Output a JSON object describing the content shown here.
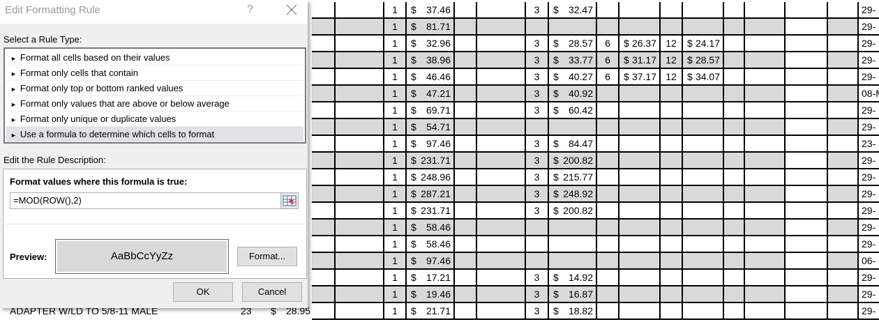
{
  "dialog": {
    "title": "Edit Formatting Rule",
    "help_label": "?",
    "select_rule_type_label": "Select a Rule Type:",
    "rule_types": [
      {
        "label": "Format all cells based on their values",
        "selected": false
      },
      {
        "label": "Format only cells that contain",
        "selected": false
      },
      {
        "label": "Format only top or bottom ranked values",
        "selected": false
      },
      {
        "label": "Format only values that are above or below average",
        "selected": false
      },
      {
        "label": "Format only unique or duplicate values",
        "selected": false
      },
      {
        "label": "Use a formula to determine which cells to format",
        "selected": true
      }
    ],
    "edit_description_label": "Edit the Rule Description:",
    "formula_label": "Format values where this formula is true:",
    "formula_value": "=MOD(ROW(),2)",
    "preview_label": "Preview:",
    "preview_text": "AaBbCcYyZz",
    "format_button": "Format...",
    "ok_button": "OK",
    "cancel_button": "Cancel"
  },
  "sheet": {
    "currency": "$",
    "shade_color": "#d9d9d9",
    "rows": [
      {
        "q1": "1",
        "p1": "37.46",
        "q2": "3",
        "p2": "32.47",
        "q3": "",
        "p3": "",
        "q4": "",
        "p4": "",
        "date": "29-"
      },
      {
        "q1": "1",
        "p1": "81.71",
        "q2": "",
        "p2": "",
        "q3": "",
        "p3": "",
        "q4": "",
        "p4": "",
        "date": "29-"
      },
      {
        "q1": "1",
        "p1": "32.96",
        "q2": "3",
        "p2": "28.57",
        "q3": "6",
        "p3": "26.37",
        "q4": "12",
        "p4": "24.17",
        "date": "29-"
      },
      {
        "q1": "1",
        "p1": "38.96",
        "q2": "3",
        "p2": "33.77",
        "q3": "6",
        "p3": "31.17",
        "q4": "12",
        "p4": "28.57",
        "date": "29-"
      },
      {
        "q1": "1",
        "p1": "46.46",
        "q2": "3",
        "p2": "40.27",
        "q3": "6",
        "p3": "37.17",
        "q4": "12",
        "p4": "34.07",
        "date": "29-"
      },
      {
        "q1": "1",
        "p1": "47.21",
        "q2": "3",
        "p2": "40.92",
        "q3": "",
        "p3": "",
        "q4": "",
        "p4": "",
        "date": "08-M"
      },
      {
        "q1": "1",
        "p1": "69.71",
        "q2": "3",
        "p2": "60.42",
        "q3": "",
        "p3": "",
        "q4": "",
        "p4": "",
        "date": "29-"
      },
      {
        "q1": "1",
        "p1": "54.71",
        "q2": "",
        "p2": "",
        "q3": "",
        "p3": "",
        "q4": "",
        "p4": "",
        "date": "29-"
      },
      {
        "q1": "1",
        "p1": "97.46",
        "q2": "3",
        "p2": "84.47",
        "q3": "",
        "p3": "",
        "q4": "",
        "p4": "",
        "date": "23-"
      },
      {
        "q1": "1",
        "p1": "231.71",
        "q2": "3",
        "p2": "200.82",
        "q3": "",
        "p3": "",
        "q4": "",
        "p4": "",
        "date": "29-"
      },
      {
        "q1": "1",
        "p1": "248.96",
        "q2": "3",
        "p2": "215.77",
        "q3": "",
        "p3": "",
        "q4": "",
        "p4": "",
        "date": "29-"
      },
      {
        "q1": "1",
        "p1": "287.21",
        "q2": "3",
        "p2": "248.92",
        "q3": "",
        "p3": "",
        "q4": "",
        "p4": "",
        "date": "29-"
      },
      {
        "q1": "1",
        "p1": "231.71",
        "q2": "3",
        "p2": "200.82",
        "q3": "",
        "p3": "",
        "q4": "",
        "p4": "",
        "date": "29-"
      },
      {
        "q1": "1",
        "p1": "58.46",
        "q2": "",
        "p2": "",
        "q3": "",
        "p3": "",
        "q4": "",
        "p4": "",
        "date": "29-"
      },
      {
        "q1": "1",
        "p1": "58.46",
        "q2": "",
        "p2": "",
        "q3": "",
        "p3": "",
        "q4": "",
        "p4": "",
        "date": "29-"
      },
      {
        "q1": "1",
        "p1": "97.46",
        "q2": "",
        "p2": "",
        "q3": "",
        "p3": "",
        "q4": "",
        "p4": "",
        "date": "06-"
      },
      {
        "q1": "1",
        "p1": "17.21",
        "q2": "3",
        "p2": "14.92",
        "q3": "",
        "p3": "",
        "q4": "",
        "p4": "",
        "date": "29-"
      },
      {
        "q1": "1",
        "p1": "19.46",
        "q2": "3",
        "p2": "16.87",
        "q3": "",
        "p3": "",
        "q4": "",
        "p4": "",
        "date": "29-"
      },
      {
        "q1": "1",
        "p1": "21.71",
        "q2": "3",
        "p2": "18.82",
        "q3": "",
        "p3": "",
        "q4": "",
        "p4": "",
        "date": "29-"
      }
    ],
    "partial_row": {
      "description": "ADAPTER W/LD TO 5/8-11 MALE",
      "qty": "23",
      "price": "28.95"
    }
  }
}
